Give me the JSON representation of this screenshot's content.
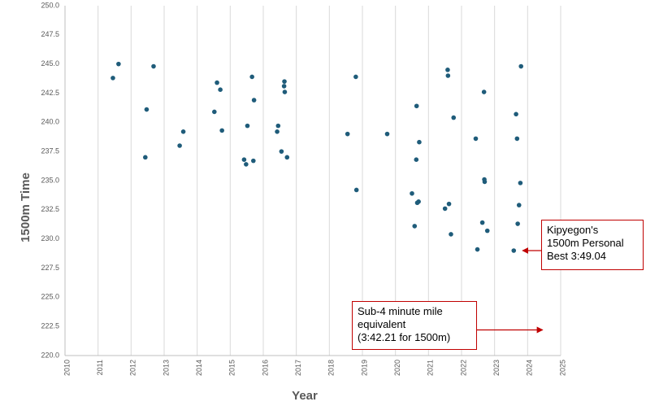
{
  "chart_data": {
    "type": "scatter",
    "xlabel": "Year",
    "ylabel": "1500m Time",
    "xlim": [
      2010,
      2025
    ],
    "ylim": [
      220.0,
      250.0
    ],
    "x_ticks": [
      "2010",
      "2011",
      "2012",
      "2013",
      "2014",
      "2015",
      "2016",
      "2017",
      "2018",
      "2019",
      "2020",
      "2021",
      "2022",
      "2023",
      "2024",
      "2025"
    ],
    "y_ticks": [
      "220.0",
      "222.5",
      "225.0",
      "227.5",
      "230.0",
      "232.5",
      "235.0",
      "237.5",
      "240.0",
      "242.5",
      "245.0",
      "247.5",
      "250.0"
    ],
    "grid": "vertical",
    "point_color": "#1f5c7a",
    "points": [
      [
        2011.45,
        243.8
      ],
      [
        2011.62,
        245.0
      ],
      [
        2012.43,
        237.0
      ],
      [
        2012.47,
        241.1
      ],
      [
        2012.68,
        244.8
      ],
      [
        2013.47,
        238.0
      ],
      [
        2013.58,
        239.2
      ],
      [
        2014.52,
        240.9
      ],
      [
        2014.6,
        243.4
      ],
      [
        2014.7,
        242.8
      ],
      [
        2014.75,
        239.3
      ],
      [
        2015.42,
        236.8
      ],
      [
        2015.48,
        236.4
      ],
      [
        2015.52,
        239.7
      ],
      [
        2015.66,
        243.9
      ],
      [
        2015.7,
        236.7
      ],
      [
        2015.72,
        241.9
      ],
      [
        2016.42,
        239.2
      ],
      [
        2016.45,
        239.7
      ],
      [
        2016.55,
        237.5
      ],
      [
        2016.63,
        243.1
      ],
      [
        2016.64,
        243.5
      ],
      [
        2016.65,
        242.6
      ],
      [
        2016.72,
        237.0
      ],
      [
        2018.55,
        239.0
      ],
      [
        2018.8,
        243.9
      ],
      [
        2018.82,
        234.2
      ],
      [
        2019.75,
        239.0
      ],
      [
        2020.5,
        233.9
      ],
      [
        2020.58,
        231.1
      ],
      [
        2020.63,
        236.8
      ],
      [
        2020.64,
        241.4
      ],
      [
        2020.66,
        233.1
      ],
      [
        2020.7,
        233.2
      ],
      [
        2020.72,
        238.3
      ],
      [
        2021.5,
        232.6
      ],
      [
        2021.58,
        244.5
      ],
      [
        2021.59,
        244.0
      ],
      [
        2021.62,
        233.0
      ],
      [
        2021.68,
        230.4
      ],
      [
        2021.76,
        240.4
      ],
      [
        2022.43,
        238.6
      ],
      [
        2022.48,
        229.1
      ],
      [
        2022.63,
        231.4
      ],
      [
        2022.68,
        242.6
      ],
      [
        2022.69,
        235.1
      ],
      [
        2022.7,
        234.9
      ],
      [
        2022.78,
        230.7
      ],
      [
        2023.58,
        229.0
      ],
      [
        2023.65,
        240.7
      ],
      [
        2023.68,
        238.6
      ],
      [
        2023.7,
        231.3
      ],
      [
        2023.74,
        232.9
      ],
      [
        2023.78,
        234.8
      ],
      [
        2023.8,
        244.8
      ]
    ],
    "annotations": [
      {
        "text": "Kipyegon's\n1500m Personal\nBest 3:49.04",
        "target": [
          2023.85,
          229.0
        ]
      },
      {
        "text": "Sub-4 minute mile\nequivalent\n (3:42.21 for 1500m)",
        "target": [
          2024.45,
          222.2
        ]
      }
    ],
    "annotation_color": "#c00000"
  }
}
